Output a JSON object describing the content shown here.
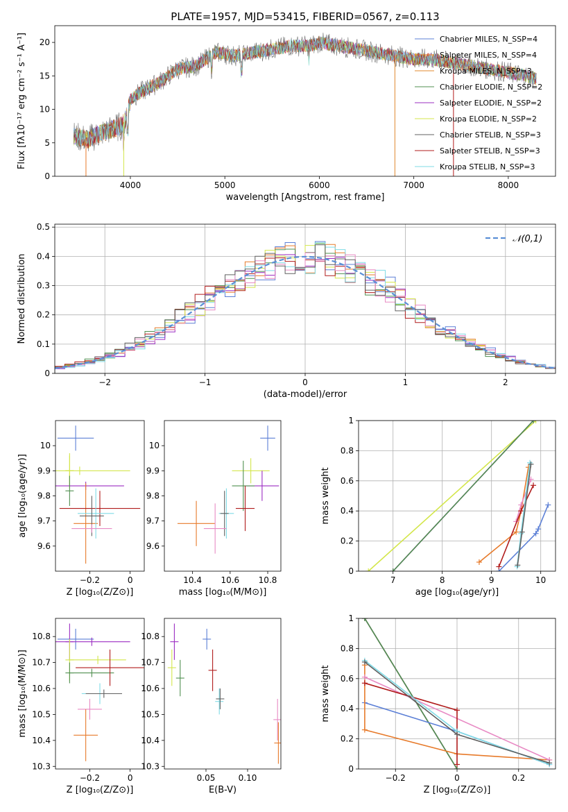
{
  "chart_data": [
    {
      "id": "spectrum",
      "type": "line",
      "title": "PLATE=1957, MJD=53415, FIBERID=0567, z=0.113",
      "xlabel": "wavelength [Angstrom, rest frame]",
      "ylabel": "Flux [fλ10⁻¹⁷ erg cm⁻² s⁻¹ A⁻¹]",
      "xlim": [
        3200,
        8500
      ],
      "ylim": [
        0,
        22.5
      ],
      "xticks": [
        4000,
        5000,
        6000,
        7000,
        8000
      ],
      "yticks": [
        0,
        5,
        10,
        15,
        20
      ],
      "envelope": {
        "x": [
          3400,
          3550,
          3700,
          3900,
          3950,
          4000,
          4100,
          4300,
          4500,
          4700,
          4800,
          4900,
          5100,
          5300,
          5500,
          5700,
          5900,
          6000,
          6200,
          6400,
          6600,
          6800,
          7000,
          7200,
          7400,
          7600,
          7800,
          8000,
          8200,
          8300
        ],
        "y": [
          6.0,
          5.5,
          6.5,
          7.5,
          8.5,
          11.5,
          12.5,
          14.0,
          16.0,
          16.5,
          17.5,
          18.5,
          18.0,
          18.5,
          19.0,
          19.5,
          19.5,
          20.0,
          19.5,
          19.0,
          18.5,
          18.0,
          17.5,
          17.5,
          17.0,
          16.5,
          16.0,
          15.5,
          15.0,
          14.5
        ]
      },
      "series": [
        {
          "name": "Chabrier MILES, N_SSP=4",
          "color": "#5b7fd6"
        },
        {
          "name": "Salpeter MILES, N_SSP=4",
          "color": "#e77a2a"
        },
        {
          "name": "Kroupa MILES, N_SSP=3",
          "color": "#e0882e"
        },
        {
          "name": "Chabrier ELODIE, N_SSP=2",
          "color": "#4f8f4f"
        },
        {
          "name": "Salpeter ELODIE, N_SSP=2",
          "color": "#9b2cc2"
        },
        {
          "name": "Kroupa ELODIE, N_SSP=2",
          "color": "#d3e64a"
        },
        {
          "name": "Chabrier STELIB, N_SSP=3",
          "color": "#606060"
        },
        {
          "name": "Salpeter STELIB, N_SSP=3",
          "color": "#b01b1b"
        },
        {
          "name": "Kroupa STELIB, N_SSP=3",
          "color": "#7fdbe6"
        }
      ],
      "legend": "upper-right"
    },
    {
      "id": "residuals",
      "type": "line",
      "xlabel": "(data-model)/error",
      "ylabel": "Normed distribution",
      "xlim": [
        -2.5,
        2.5
      ],
      "ylim": [
        0,
        0.51
      ],
      "xticks": [
        -2,
        -1,
        0,
        1,
        2
      ],
      "yticks": [
        0.0,
        0.1,
        0.2,
        0.3,
        0.4,
        0.5
      ],
      "grid": true,
      "reference": {
        "name": "𝒩(0,1)",
        "color": "#5b8fd6"
      },
      "colors": [
        "#5b7fd6",
        "#e77a2a",
        "#4f8f4f",
        "#9b2cc2",
        "#d3e64a",
        "#b01b1b",
        "#7fdbe6",
        "#e88ac4",
        "#606060"
      ],
      "legend": "upper-right"
    },
    {
      "id": "age-vs-Z",
      "type": "scatter",
      "xlabel": "Z [log₁₀(Z/Z⊙)]",
      "ylabel": "age  [log₁₀(age/yr)]",
      "xlim": [
        -0.37,
        0.07
      ],
      "ylim": [
        9.5,
        10.1
      ],
      "xticks": [
        -0.2,
        0.0
      ],
      "yticks": [
        9.6,
        9.7,
        9.8,
        9.9,
        10.0
      ],
      "points": [
        {
          "x": -0.27,
          "y": 10.03,
          "xerr": 0.09,
          "yerr": 0.05,
          "color": "#5b7fd6"
        },
        {
          "x": -0.3,
          "y": 9.9,
          "xerr": 0.01,
          "yerr": 0.07,
          "color": "#d3e64a"
        },
        {
          "x": -0.3,
          "y": 9.9,
          "xerr": 0.0,
          "yerr": 0.06,
          "color": "#d3e64a"
        },
        {
          "x": -0.25,
          "y": 9.9,
          "xerr": 0.25,
          "yerr": 0.0,
          "color": "#d3e64a"
        },
        {
          "x": -0.22,
          "y": 9.84,
          "xerr": 0.19,
          "yerr": 0.0,
          "color": "#9b2cc2"
        },
        {
          "x": -0.3,
          "y": 9.82,
          "xerr": 0.0,
          "yerr": 0.06,
          "color": "#4f8f4f"
        },
        {
          "x": -0.22,
          "y": 9.69,
          "xerr": 0.06,
          "yerr": 0.16,
          "color": "#e77a2a"
        },
        {
          "x": -0.15,
          "y": 9.75,
          "xerr": 0.2,
          "yerr": 0.07,
          "color": "#b01b1b"
        },
        {
          "x": -0.17,
          "y": 9.73,
          "xerr": 0.09,
          "yerr": 0.1,
          "color": "#7fdbe6"
        },
        {
          "x": -0.19,
          "y": 9.72,
          "xerr": 0.06,
          "yerr": 0.08,
          "color": "#606060"
        },
        {
          "x": -0.19,
          "y": 9.67,
          "xerr": 0.1,
          "yerr": 0.0,
          "color": "#e88ac4"
        }
      ]
    },
    {
      "id": "age-vs-mass",
      "type": "scatter",
      "xlabel": "mass [log₁₀(M/M⊙)]",
      "ylabel": "",
      "xlim": [
        10.25,
        10.87
      ],
      "ylim": [
        9.5,
        10.1
      ],
      "xticks": [
        10.4,
        10.6,
        10.8
      ],
      "yticks": [
        9.6,
        9.7,
        9.8,
        9.9,
        10.0
      ],
      "points": [
        {
          "x": 10.8,
          "y": 10.03,
          "xerr": 0.04,
          "yerr": 0.05,
          "color": "#5b7fd6"
        },
        {
          "x": 10.71,
          "y": 9.9,
          "xerr": 0.1,
          "yerr": 0.05,
          "color": "#d3e64a"
        },
        {
          "x": 10.77,
          "y": 9.84,
          "xerr": 0.09,
          "yerr": 0.06,
          "color": "#9b2cc2"
        },
        {
          "x": 10.67,
          "y": 9.84,
          "xerr": 0.06,
          "yerr": 0.1,
          "color": "#4f8f4f"
        },
        {
          "x": 10.42,
          "y": 9.69,
          "xerr": 0.1,
          "yerr": 0.09,
          "color": "#e77a2a"
        },
        {
          "x": 10.68,
          "y": 9.75,
          "xerr": 0.05,
          "yerr": 0.09,
          "color": "#b01b1b"
        },
        {
          "x": 10.58,
          "y": 9.73,
          "xerr": 0.04,
          "yerr": 0.1,
          "color": "#7fdbe6"
        },
        {
          "x": 10.57,
          "y": 9.73,
          "xerr": 0.0,
          "yerr": 0.09,
          "color": "#606060"
        },
        {
          "x": 10.52,
          "y": 9.67,
          "xerr": 0.06,
          "yerr": 0.1,
          "color": "#e88ac4"
        }
      ]
    },
    {
      "id": "mass-weight-vs-age",
      "type": "line",
      "xlabel": "age  [log₁₀(age/yr)]",
      "ylabel": "mass weight",
      "xlim": [
        6.3,
        10.3
      ],
      "ylim": [
        0,
        1
      ],
      "xticks": [
        7,
        8,
        9,
        10
      ],
      "yticks": [
        0.0,
        0.2,
        0.4,
        0.6,
        0.8,
        1.0
      ],
      "grid": true,
      "series": [
        {
          "color": "#d3e64a",
          "x": [
            6.5,
            9.9
          ],
          "y": [
            0.0,
            1.0
          ]
        },
        {
          "color": "#9b2cc2",
          "x": [
            7.0,
            9.85
          ],
          "y": [
            0.0,
            1.0
          ]
        },
        {
          "color": "#4f8f4f",
          "x": [
            7.0,
            9.85
          ],
          "y": [
            0.0,
            1.0
          ]
        },
        {
          "color": "#5b7fd6",
          "x": [
            9.15,
            9.9,
            9.95,
            10.15
          ],
          "y": [
            0.0,
            0.25,
            0.28,
            0.44
          ]
        },
        {
          "color": "#e77a2a",
          "x": [
            8.75,
            9.5,
            9.6,
            9.75
          ],
          "y": [
            0.06,
            0.26,
            0.4,
            0.69
          ]
        },
        {
          "color": "#e88ac4",
          "x": [
            9.5,
            9.6,
            9.8
          ],
          "y": [
            0.33,
            0.44,
            0.61
          ]
        },
        {
          "color": "#b01b1b",
          "x": [
            9.15,
            9.6,
            9.85
          ],
          "y": [
            0.03,
            0.4,
            0.57
          ]
        },
        {
          "color": "#7fdbe6",
          "x": [
            9.52,
            9.6,
            9.78
          ],
          "y": [
            0.03,
            0.25,
            0.72
          ]
        },
        {
          "color": "#606060",
          "x": [
            9.53,
            9.62,
            9.8
          ],
          "y": [
            0.04,
            0.26,
            0.71
          ]
        }
      ]
    },
    {
      "id": "mass-vs-Z",
      "type": "scatter",
      "xlabel": "Z [log₁₀(Z/Z⊙)]",
      "ylabel": "mass [log₁₀(M/M⊙)]",
      "xlim": [
        -0.37,
        0.07
      ],
      "ylim": [
        10.29,
        10.87
      ],
      "xticks": [
        -0.2,
        0.0
      ],
      "yticks": [
        10.3,
        10.4,
        10.5,
        10.6,
        10.7,
        10.8
      ],
      "points": [
        {
          "x": -0.27,
          "y": 10.79,
          "xerr": 0.09,
          "yerr": 0.04,
          "color": "#5b7fd6"
        },
        {
          "x": -0.3,
          "y": 10.78,
          "xerr": 0.0,
          "yerr": 0.07,
          "color": "#9b2cc2"
        },
        {
          "x": -0.19,
          "y": 10.78,
          "xerr": 0.19,
          "yerr": 0.0,
          "color": "#9b2cc2"
        },
        {
          "x": -0.3,
          "y": 10.71,
          "xerr": 0.0,
          "yerr": 0.08,
          "color": "#d3e64a"
        },
        {
          "x": -0.16,
          "y": 10.71,
          "xerr": 0.14,
          "yerr": 0.0,
          "color": "#d3e64a"
        },
        {
          "x": -0.19,
          "y": 10.66,
          "xerr": 0.11,
          "yerr": 0.0,
          "color": "#4f8f4f"
        },
        {
          "x": -0.3,
          "y": 10.66,
          "xerr": 0.0,
          "yerr": 0.04,
          "color": "#4f8f4f"
        },
        {
          "x": -0.1,
          "y": 10.68,
          "xerr": 0.17,
          "yerr": 0.07,
          "color": "#b01b1b"
        },
        {
          "x": -0.15,
          "y": 10.58,
          "xerr": 0.09,
          "yerr": 0.04,
          "color": "#7fdbe6"
        },
        {
          "x": -0.13,
          "y": 10.58,
          "xerr": 0.09,
          "yerr": 0.0,
          "color": "#606060"
        },
        {
          "x": -0.2,
          "y": 10.52,
          "xerr": 0.06,
          "yerr": 0.04,
          "color": "#e88ac4"
        },
        {
          "x": -0.22,
          "y": 10.42,
          "xerr": 0.06,
          "yerr": 0.1,
          "color": "#e77a2a"
        }
      ]
    },
    {
      "id": "mass-vs-ebv",
      "type": "scatter",
      "xlabel": "E(B-V)",
      "ylabel": "",
      "xlim": [
        0.0,
        0.14
      ],
      "ylim": [
        10.29,
        10.87
      ],
      "xticks": [
        0.05,
        0.1
      ],
      "xticklabels": [
        "0.05",
        "0.10"
      ],
      "yticks": [
        10.3,
        10.4,
        10.5,
        10.6,
        10.7,
        10.8
      ],
      "points": [
        {
          "x": 0.051,
          "y": 10.79,
          "xerr": 0.0,
          "yerr": 0.04,
          "color": "#5b7fd6"
        },
        {
          "x": 0.012,
          "y": 10.78,
          "xerr": 0.0,
          "yerr": 0.07,
          "color": "#9b2cc2"
        },
        {
          "x": 0.009,
          "y": 10.68,
          "xerr": 0.0,
          "yerr": 0.07,
          "color": "#d3e64a"
        },
        {
          "x": 0.019,
          "y": 10.64,
          "xerr": 0.0,
          "yerr": 0.07,
          "color": "#4f8f4f"
        },
        {
          "x": 0.058,
          "y": 10.67,
          "xerr": 0.0,
          "yerr": 0.08,
          "color": "#b01b1b"
        },
        {
          "x": 0.066,
          "y": 10.55,
          "xerr": 0.0,
          "yerr": 0.05,
          "color": "#7fdbe6"
        },
        {
          "x": 0.067,
          "y": 10.56,
          "xerr": 0.0,
          "yerr": 0.04,
          "color": "#606060"
        },
        {
          "x": 0.136,
          "y": 10.48,
          "xerr": 0.0,
          "yerr": 0.08,
          "color": "#e88ac4"
        },
        {
          "x": 0.137,
          "y": 10.39,
          "xerr": 0.0,
          "yerr": 0.08,
          "color": "#e77a2a"
        }
      ]
    },
    {
      "id": "mass-weight-vs-Z",
      "type": "line",
      "xlabel": "Z [log₁₀(Z/Z⊙)]",
      "ylabel": "mass weight",
      "xlim": [
        -0.32,
        0.32
      ],
      "ylim": [
        0,
        1
      ],
      "xticks": [
        -0.2,
        0.0,
        0.2
      ],
      "yticks": [
        0.0,
        0.2,
        0.4,
        0.6,
        0.8,
        1.0
      ],
      "grid": true,
      "series": [
        {
          "color": "#d3e64a",
          "x": [
            -0.3,
            0.0
          ],
          "y": [
            1.0,
            0.0
          ]
        },
        {
          "color": "#9b2cc2",
          "x": [
            -0.3,
            0.0
          ],
          "y": [
            1.0,
            0.0
          ]
        },
        {
          "color": "#4f8f4f",
          "x": [
            -0.3,
            0.0
          ],
          "y": [
            1.0,
            0.0
          ]
        },
        {
          "color": "#5b7fd6",
          "x": [
            -0.3,
            0.0,
            0.3
          ],
          "y": [
            0.44,
            0.25,
            0.03
          ]
        },
        {
          "color": "#e77a2a",
          "x": [
            -0.3,
            -0.3,
            0.0,
            0.3
          ],
          "y": [
            0.69,
            0.26,
            0.1,
            0.06
          ]
        },
        {
          "color": "#e88ac4",
          "x": [
            -0.3,
            0.3
          ],
          "y": [
            0.61,
            0.06
          ]
        },
        {
          "color": "#b01b1b",
          "x": [
            -0.3,
            0.0,
            0.0
          ],
          "y": [
            0.57,
            0.39,
            0.03
          ]
        },
        {
          "color": "#7fdbe6",
          "x": [
            -0.3,
            0.0,
            0.3
          ],
          "y": [
            0.72,
            0.25,
            0.03
          ]
        },
        {
          "color": "#606060",
          "x": [
            -0.3,
            0.0,
            0.3
          ],
          "y": [
            0.71,
            0.23,
            0.04
          ]
        }
      ]
    }
  ]
}
